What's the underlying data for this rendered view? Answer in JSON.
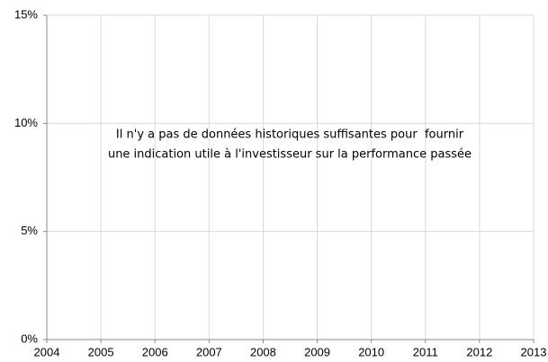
{
  "chart_data": {
    "type": "bar",
    "annotation": [
      "Il n'y a pas de données historiques suffisantes pour  fournir",
      "une indication utile à l'investisseur sur la performance passée"
    ],
    "xlim": [
      2004,
      2013
    ],
    "xticks": [
      2004,
      2005,
      2006,
      2007,
      2008,
      2009,
      2010,
      2011,
      2012,
      2013
    ],
    "ylim": [
      0,
      15
    ],
    "yticks": [
      {
        "value": 0,
        "label": "0%"
      },
      {
        "value": 5,
        "label": "5%"
      },
      {
        "value": 10,
        "label": "10%"
      },
      {
        "value": 15,
        "label": "15%"
      }
    ],
    "grid": true
  }
}
